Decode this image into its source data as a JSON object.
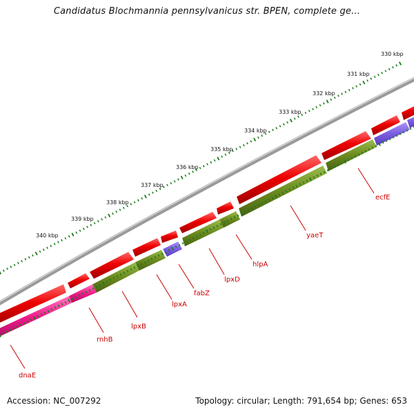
{
  "title": "Candidatus Blochmannia pennsylvanicus str. BPEN, complete ge...",
  "footer": {
    "accession": "Accession: NC_007292",
    "summary": "Topology: circular; Length: 791,654 bp; Genes: 653"
  },
  "colors": {
    "forward": "#ee0000",
    "reverse_cds": "#6b8a1f",
    "rrna": "#7a5ce0",
    "trna": "#ee1a8a",
    "backbone": "#8a8a8a",
    "ticks": "#1a7a1a",
    "gene_label": "#cc0000"
  },
  "tick_labels": [
    "330 kbp",
    "331 kbp",
    "332 kbp",
    "333 kbp",
    "334 kbp",
    "335 kbp",
    "336 kbp",
    "337 kbp",
    "338 kbp",
    "339 kbp",
    "340 kbp"
  ],
  "gene_labels": [
    "ecfE",
    "yaeT",
    "hlpA",
    "lpxD",
    "fabZ",
    "lpxA",
    "lpxB",
    "rnhB",
    "dnaE"
  ]
}
